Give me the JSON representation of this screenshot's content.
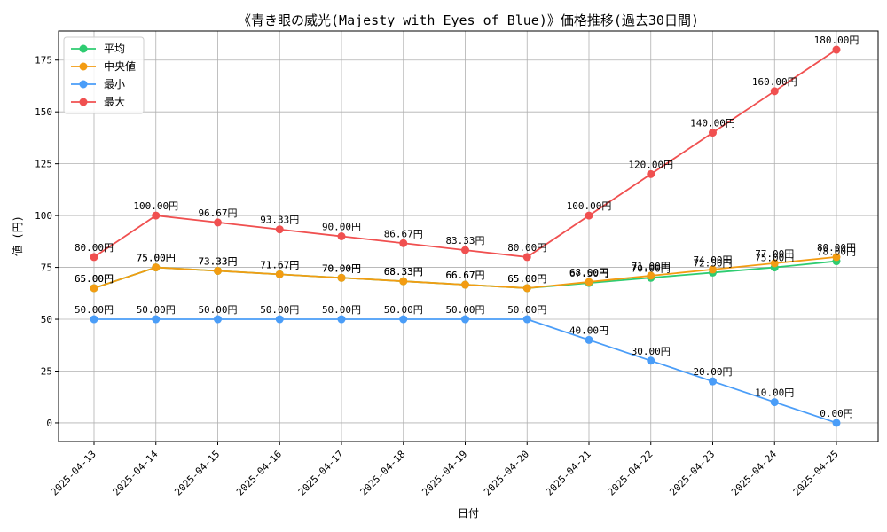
{
  "chart_data": {
    "type": "line",
    "title": "《青き眼の威光(Majesty with Eyes of Blue)》価格推移(過去30日間)",
    "xlabel": "日付",
    "ylabel": "値 (円)",
    "ylim": [
      -9,
      189
    ],
    "yticks": [
      0,
      25,
      50,
      75,
      100,
      125,
      150,
      175
    ],
    "grid": true,
    "legend_position": "top-left",
    "label_suffix": "円",
    "categories": [
      "2025-04-13",
      "2025-04-14",
      "2025-04-15",
      "2025-04-16",
      "2025-04-17",
      "2025-04-18",
      "2025-04-19",
      "2025-04-20",
      "2025-04-21",
      "2025-04-22",
      "2025-04-23",
      "2025-04-24",
      "2025-04-25"
    ],
    "series": [
      {
        "name": "平均",
        "color": "#2ecc71",
        "values": [
          65.0,
          75.0,
          73.33,
          71.67,
          70.0,
          68.33,
          66.67,
          65.0,
          67.5,
          70.0,
          72.5,
          75.0,
          78.0
        ]
      },
      {
        "name": "中央値",
        "color": "#f39c12",
        "values": [
          65.0,
          75.0,
          73.33,
          71.67,
          70.0,
          68.33,
          66.67,
          65.0,
          68.0,
          71.0,
          74.0,
          77.0,
          80.0
        ]
      },
      {
        "name": "最小",
        "color": "#4a9df8",
        "values": [
          50.0,
          50.0,
          50.0,
          50.0,
          50.0,
          50.0,
          50.0,
          50.0,
          40.0,
          30.0,
          20.0,
          10.0,
          0.0
        ]
      },
      {
        "name": "最大",
        "color": "#f05050",
        "values": [
          80.0,
          100.0,
          96.67,
          93.33,
          90.0,
          86.67,
          83.33,
          80.0,
          100.0,
          120.0,
          140.0,
          160.0,
          180.0
        ]
      }
    ]
  }
}
